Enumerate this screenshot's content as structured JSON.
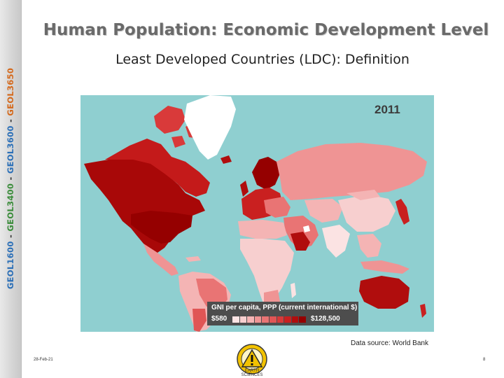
{
  "sidebar": {
    "course1": "GEOL1600",
    "course2": "GEOL3400",
    "course3": "GEOL3600",
    "course4": "GEOL3650",
    "separator": " - "
  },
  "slide": {
    "title": "Human Population: Economic Development Level",
    "subtitle": "Least Developed Countries (LDC): Definition",
    "date": "28-Feb-21",
    "page_number": "8"
  },
  "map": {
    "year": "2011",
    "legend_title": "GNI per capita, PPP (current international $)",
    "legend_min": "$580",
    "legend_max": "$128,500",
    "source": "Data source: World Bank",
    "ocean_color": "#8fcfd0",
    "scale_colors": [
      "#fbe3e3",
      "#f7cfcf",
      "#f4b4b4",
      "#ef9494",
      "#e97474",
      "#e05555",
      "#d63a3a",
      "#c92020",
      "#b00d0d",
      "#950000"
    ]
  },
  "logo": {
    "icon": "warning-sign-icon",
    "caption": "EARTH SCIENCES"
  }
}
